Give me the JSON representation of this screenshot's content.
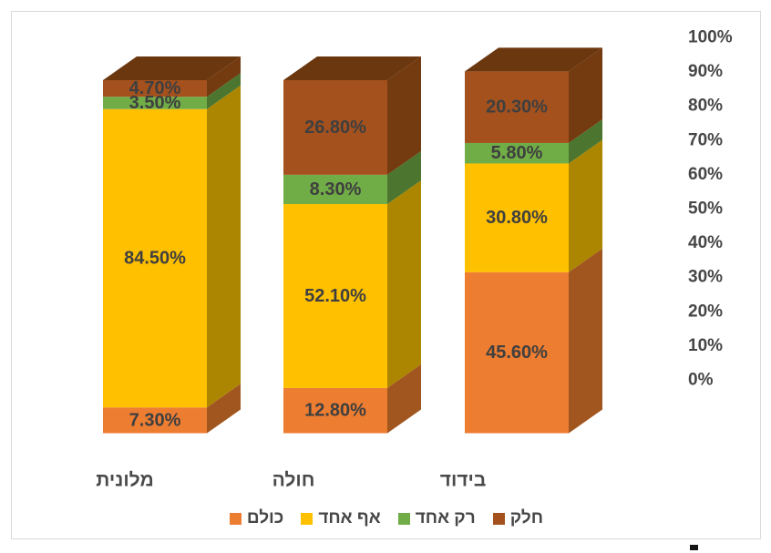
{
  "frame": {
    "border_color": "#D9D9D9",
    "background": "#FFFFFF"
  },
  "chart_data": {
    "type": "bar",
    "variant": "3d-stacked-100-percent",
    "rtl": true,
    "title": "",
    "xlabel": "",
    "ylabel": "",
    "gridlines": false,
    "categories": [
      "מלונית",
      "חולה",
      "בידוד"
    ],
    "series": [
      {
        "name": "כולם",
        "color": "#ED7D31",
        "side_color": "#A1561F",
        "values": [
          7.3,
          12.8,
          45.6
        ],
        "labels": [
          "7.30%",
          "12.80%",
          "45.60%"
        ]
      },
      {
        "name": "אף אחד",
        "color": "#FFC000",
        "side_color": "#AC8600",
        "values": [
          84.5,
          52.1,
          30.8
        ],
        "labels": [
          "84.50%",
          "52.10%",
          "30.80%"
        ]
      },
      {
        "name": "רק אחד",
        "color": "#70AD47",
        "side_color": "#4C7630",
        "values": [
          3.5,
          8.3,
          5.8
        ],
        "labels": [
          "3.50%",
          "8.30%",
          "5.80%"
        ]
      },
      {
        "name": "חלק",
        "color": "#A4511E",
        "side_color": "#743A10",
        "top_color": "#6B370F",
        "values": [
          4.7,
          26.8,
          20.3
        ],
        "labels": [
          "4.70%",
          "26.80%",
          "20.30%"
        ]
      }
    ],
    "y_axis": {
      "position": "right",
      "min": 0,
      "max": 100,
      "ticks": [
        "0%",
        "10%",
        "20%",
        "30%",
        "40%",
        "50%",
        "60%",
        "70%",
        "80%",
        "90%",
        "100%"
      ]
    },
    "legend": {
      "position": "bottom",
      "items": [
        "כולם",
        "אף אחד",
        "רק אחד",
        "חלק"
      ]
    },
    "label_color": "#3F3F3F",
    "axis_label_color": "#464646"
  },
  "footer": {
    "cropped_fragment": "▪"
  }
}
